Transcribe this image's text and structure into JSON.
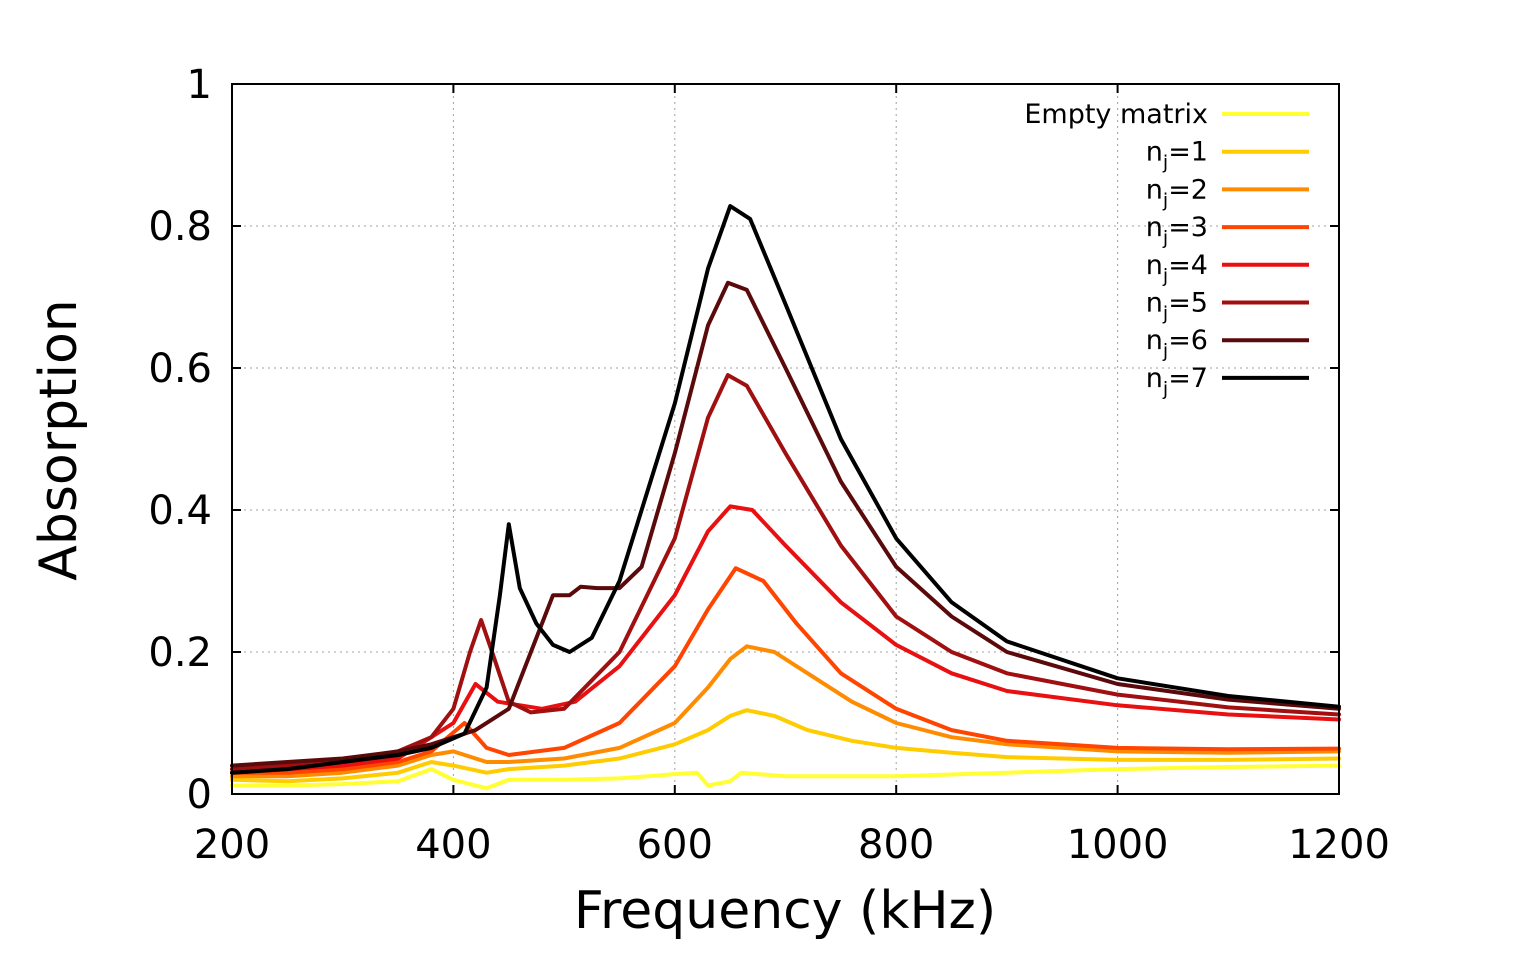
{
  "chart_data": {
    "type": "line",
    "title": "",
    "xlabel": "Frequency (kHz)",
    "ylabel": "Absorption",
    "xlim": [
      200,
      1200
    ],
    "ylim": [
      0,
      1
    ],
    "grid": true,
    "legend_position": "top-right",
    "xticks": [
      200,
      400,
      600,
      800,
      1000,
      1200
    ],
    "xtick_labels": [
      "200",
      "400",
      "600",
      "800",
      "1000",
      "1200"
    ],
    "yticks": [
      0,
      0.2,
      0.4,
      0.6,
      0.8,
      1
    ],
    "ytick_labels": [
      "0",
      "0.2",
      "0.4",
      "0.6",
      "0.8",
      "1"
    ],
    "series": [
      {
        "name": "Empty matrix",
        "legend_base": "Empty matrix",
        "legend_sub": "",
        "legend_suffix": "",
        "color": "#ffff33",
        "points": [
          [
            200,
            0.012
          ],
          [
            250,
            0.012
          ],
          [
            300,
            0.014
          ],
          [
            350,
            0.018
          ],
          [
            380,
            0.035
          ],
          [
            400,
            0.02
          ],
          [
            430,
            0.008
          ],
          [
            450,
            0.02
          ],
          [
            500,
            0.02
          ],
          [
            550,
            0.022
          ],
          [
            600,
            0.028
          ],
          [
            620,
            0.03
          ],
          [
            630,
            0.012
          ],
          [
            650,
            0.018
          ],
          [
            660,
            0.03
          ],
          [
            700,
            0.025
          ],
          [
            800,
            0.025
          ],
          [
            900,
            0.03
          ],
          [
            1000,
            0.035
          ],
          [
            1100,
            0.038
          ],
          [
            1200,
            0.04
          ]
        ]
      },
      {
        "name": "nj=1",
        "legend_base": "n",
        "legend_sub": "j",
        "legend_suffix": "=1",
        "color": "#ffcc00",
        "points": [
          [
            200,
            0.02
          ],
          [
            250,
            0.018
          ],
          [
            300,
            0.022
          ],
          [
            350,
            0.03
          ],
          [
            380,
            0.045
          ],
          [
            400,
            0.04
          ],
          [
            430,
            0.03
          ],
          [
            450,
            0.035
          ],
          [
            500,
            0.04
          ],
          [
            550,
            0.05
          ],
          [
            600,
            0.07
          ],
          [
            630,
            0.09
          ],
          [
            650,
            0.11
          ],
          [
            665,
            0.118
          ],
          [
            690,
            0.11
          ],
          [
            720,
            0.09
          ],
          [
            760,
            0.075
          ],
          [
            800,
            0.065
          ],
          [
            850,
            0.058
          ],
          [
            900,
            0.052
          ],
          [
            1000,
            0.048
          ],
          [
            1100,
            0.048
          ],
          [
            1200,
            0.05
          ]
        ]
      },
      {
        "name": "nj=2",
        "legend_base": "n",
        "legend_sub": "j",
        "legend_suffix": "=2",
        "color": "#ff8c00",
        "points": [
          [
            200,
            0.025
          ],
          [
            250,
            0.025
          ],
          [
            300,
            0.03
          ],
          [
            350,
            0.04
          ],
          [
            380,
            0.055
          ],
          [
            400,
            0.06
          ],
          [
            430,
            0.045
          ],
          [
            450,
            0.045
          ],
          [
            500,
            0.05
          ],
          [
            550,
            0.065
          ],
          [
            600,
            0.1
          ],
          [
            630,
            0.15
          ],
          [
            650,
            0.19
          ],
          [
            665,
            0.208
          ],
          [
            690,
            0.2
          ],
          [
            720,
            0.17
          ],
          [
            760,
            0.13
          ],
          [
            800,
            0.1
          ],
          [
            850,
            0.08
          ],
          [
            900,
            0.07
          ],
          [
            1000,
            0.06
          ],
          [
            1100,
            0.058
          ],
          [
            1200,
            0.06
          ]
        ]
      },
      {
        "name": "nj=3",
        "legend_base": "n",
        "legend_sub": "j",
        "legend_suffix": "=3",
        "color": "#ff4500",
        "points": [
          [
            200,
            0.03
          ],
          [
            250,
            0.03
          ],
          [
            300,
            0.035
          ],
          [
            350,
            0.045
          ],
          [
            380,
            0.06
          ],
          [
            410,
            0.1
          ],
          [
            430,
            0.065
          ],
          [
            450,
            0.055
          ],
          [
            500,
            0.065
          ],
          [
            550,
            0.1
          ],
          [
            600,
            0.18
          ],
          [
            630,
            0.26
          ],
          [
            655,
            0.318
          ],
          [
            680,
            0.3
          ],
          [
            710,
            0.24
          ],
          [
            750,
            0.17
          ],
          [
            800,
            0.12
          ],
          [
            850,
            0.09
          ],
          [
            900,
            0.075
          ],
          [
            1000,
            0.065
          ],
          [
            1100,
            0.063
          ],
          [
            1200,
            0.064
          ]
        ]
      },
      {
        "name": "nj=4",
        "legend_base": "n",
        "legend_sub": "j",
        "legend_suffix": "=4",
        "color": "#e81010",
        "points": [
          [
            200,
            0.03
          ],
          [
            250,
            0.035
          ],
          [
            300,
            0.04
          ],
          [
            350,
            0.05
          ],
          [
            380,
            0.08
          ],
          [
            400,
            0.1
          ],
          [
            420,
            0.155
          ],
          [
            440,
            0.13
          ],
          [
            480,
            0.12
          ],
          [
            510,
            0.13
          ],
          [
            550,
            0.18
          ],
          [
            600,
            0.28
          ],
          [
            630,
            0.37
          ],
          [
            650,
            0.405
          ],
          [
            670,
            0.4
          ],
          [
            700,
            0.35
          ],
          [
            750,
            0.27
          ],
          [
            800,
            0.21
          ],
          [
            850,
            0.17
          ],
          [
            900,
            0.145
          ],
          [
            1000,
            0.125
          ],
          [
            1100,
            0.112
          ],
          [
            1200,
            0.105
          ]
        ]
      },
      {
        "name": "nj=5",
        "legend_base": "n",
        "legend_sub": "j",
        "legend_suffix": "=5",
        "color": "#a01010",
        "points": [
          [
            200,
            0.035
          ],
          [
            250,
            0.04
          ],
          [
            300,
            0.045
          ],
          [
            350,
            0.06
          ],
          [
            380,
            0.08
          ],
          [
            400,
            0.12
          ],
          [
            415,
            0.2
          ],
          [
            425,
            0.245
          ],
          [
            435,
            0.2
          ],
          [
            450,
            0.13
          ],
          [
            470,
            0.115
          ],
          [
            500,
            0.12
          ],
          [
            550,
            0.2
          ],
          [
            600,
            0.36
          ],
          [
            630,
            0.53
          ],
          [
            648,
            0.59
          ],
          [
            665,
            0.575
          ],
          [
            700,
            0.48
          ],
          [
            750,
            0.35
          ],
          [
            800,
            0.25
          ],
          [
            850,
            0.2
          ],
          [
            900,
            0.17
          ],
          [
            1000,
            0.14
          ],
          [
            1100,
            0.122
          ],
          [
            1200,
            0.112
          ]
        ]
      },
      {
        "name": "nj=6",
        "legend_base": "n",
        "legend_sub": "j",
        "legend_suffix": "=6",
        "color": "#5a0a0a",
        "points": [
          [
            200,
            0.04
          ],
          [
            250,
            0.045
          ],
          [
            300,
            0.05
          ],
          [
            350,
            0.06
          ],
          [
            380,
            0.07
          ],
          [
            420,
            0.09
          ],
          [
            450,
            0.12
          ],
          [
            470,
            0.2
          ],
          [
            490,
            0.28
          ],
          [
            505,
            0.28
          ],
          [
            515,
            0.292
          ],
          [
            530,
            0.29
          ],
          [
            550,
            0.29
          ],
          [
            570,
            0.32
          ],
          [
            600,
            0.48
          ],
          [
            630,
            0.66
          ],
          [
            648,
            0.72
          ],
          [
            665,
            0.71
          ],
          [
            700,
            0.6
          ],
          [
            750,
            0.44
          ],
          [
            800,
            0.32
          ],
          [
            850,
            0.25
          ],
          [
            900,
            0.2
          ],
          [
            1000,
            0.155
          ],
          [
            1100,
            0.133
          ],
          [
            1200,
            0.12
          ]
        ]
      },
      {
        "name": "nj=7",
        "legend_base": "n",
        "legend_sub": "j",
        "legend_suffix": "=7",
        "color": "#000000",
        "points": [
          [
            200,
            0.03
          ],
          [
            250,
            0.035
          ],
          [
            300,
            0.045
          ],
          [
            350,
            0.055
          ],
          [
            380,
            0.065
          ],
          [
            410,
            0.085
          ],
          [
            430,
            0.15
          ],
          [
            442,
            0.28
          ],
          [
            450,
            0.38
          ],
          [
            460,
            0.29
          ],
          [
            475,
            0.24
          ],
          [
            490,
            0.21
          ],
          [
            505,
            0.2
          ],
          [
            525,
            0.22
          ],
          [
            550,
            0.3
          ],
          [
            600,
            0.55
          ],
          [
            630,
            0.74
          ],
          [
            650,
            0.828
          ],
          [
            668,
            0.81
          ],
          [
            700,
            0.69
          ],
          [
            750,
            0.5
          ],
          [
            800,
            0.36
          ],
          [
            850,
            0.27
          ],
          [
            900,
            0.215
          ],
          [
            1000,
            0.163
          ],
          [
            1100,
            0.138
          ],
          [
            1200,
            0.123
          ]
        ]
      }
    ]
  }
}
